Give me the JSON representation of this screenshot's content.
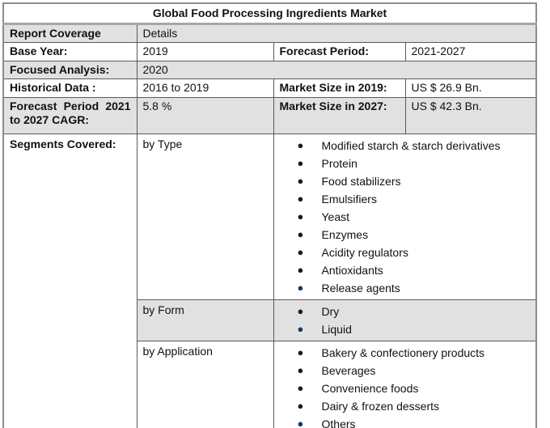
{
  "colors": {
    "row_shade": "#e1e1e1",
    "border_outer": "#8c8c8c",
    "border_inner": "#595959",
    "title_rule": "#a6a6a6",
    "bullet_black": "#1a1a1a",
    "bullet_navy": "#17375e"
  },
  "icons": {
    "bullet": "●"
  },
  "table": {
    "title": "Global Food Processing Ingredients Market",
    "rows": {
      "report_coverage": {
        "label": "Report Coverage",
        "value": "Details"
      },
      "base_year": {
        "label": "Base Year:",
        "value": "2019"
      },
      "forecast_period": {
        "label": "Forecast Period:",
        "value": "2021-2027"
      },
      "focused_analysis": {
        "label": "Focused Analysis:",
        "value": "2020"
      },
      "historical_data": {
        "label": "Historical Data :",
        "value": "2016 to 2019"
      },
      "market_size_2019": {
        "label": "Market Size in 2019:",
        "value": "US $ 26.9 Bn."
      },
      "forecast_cagr": {
        "label": "Forecast Period 2021 to 2027 CAGR:",
        "value": "5.8 %"
      },
      "market_size_2027": {
        "label": "Market Size in 2027:",
        "value": "US $ 42.3 Bn."
      }
    },
    "segments": {
      "label": "Segments Covered:",
      "groups": [
        {
          "name": "by Type",
          "items": [
            "Modified starch & starch derivatives",
            "Protein",
            "Food stabilizers",
            "Emulsifiers",
            "Yeast",
            "Enzymes",
            "Acidity regulators",
            "Antioxidants",
            "Release agents"
          ]
        },
        {
          "name": "by Form",
          "items": [
            "Dry",
            "Liquid"
          ]
        },
        {
          "name": "by Application",
          "items": [
            "Bakery & confectionery products",
            "Beverages",
            "Convenience foods",
            "Dairy & frozen desserts",
            "Others"
          ]
        }
      ]
    }
  }
}
